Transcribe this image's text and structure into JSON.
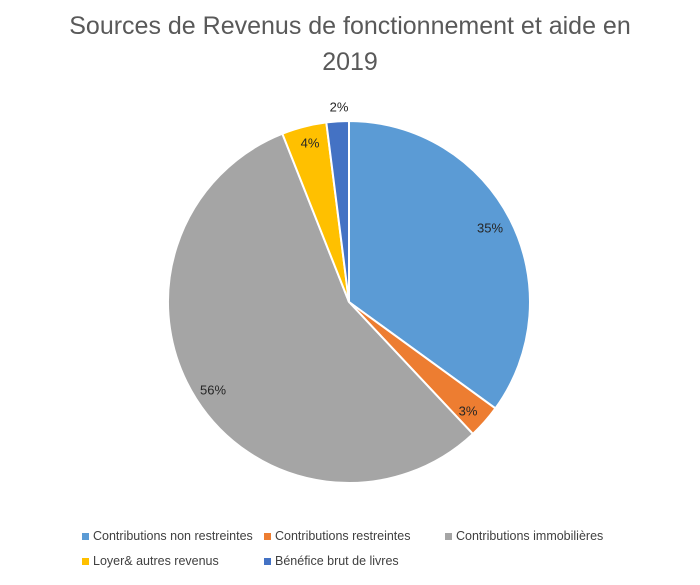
{
  "chart_data": {
    "type": "pie",
    "title": "Sources de Revenus de fonctionnement et aide en 2019",
    "title_lines": [
      "Sources de Revenus de fonctionnement et aide en",
      "2019"
    ],
    "slices": [
      {
        "label": "Contributions non restreintes",
        "value": 35,
        "display": "35%",
        "color": "#5B9BD5"
      },
      {
        "label": "Contributions restreintes",
        "value": 3,
        "display": "3%",
        "color": "#ED7D31"
      },
      {
        "label": "Contributions immobilières",
        "value": 56,
        "display": "56%",
        "color": "#A5A5A5"
      },
      {
        "label": "Loyer& autres revenus",
        "value": 4,
        "display": "4%",
        "color": "#FFC000"
      },
      {
        "label": "Bénéfice brut de livres",
        "value": 2,
        "display": "2%",
        "color": "#4472C4"
      }
    ],
    "legend_position": "bottom",
    "start_angle": "12 o'clock",
    "direction": "clockwise"
  }
}
